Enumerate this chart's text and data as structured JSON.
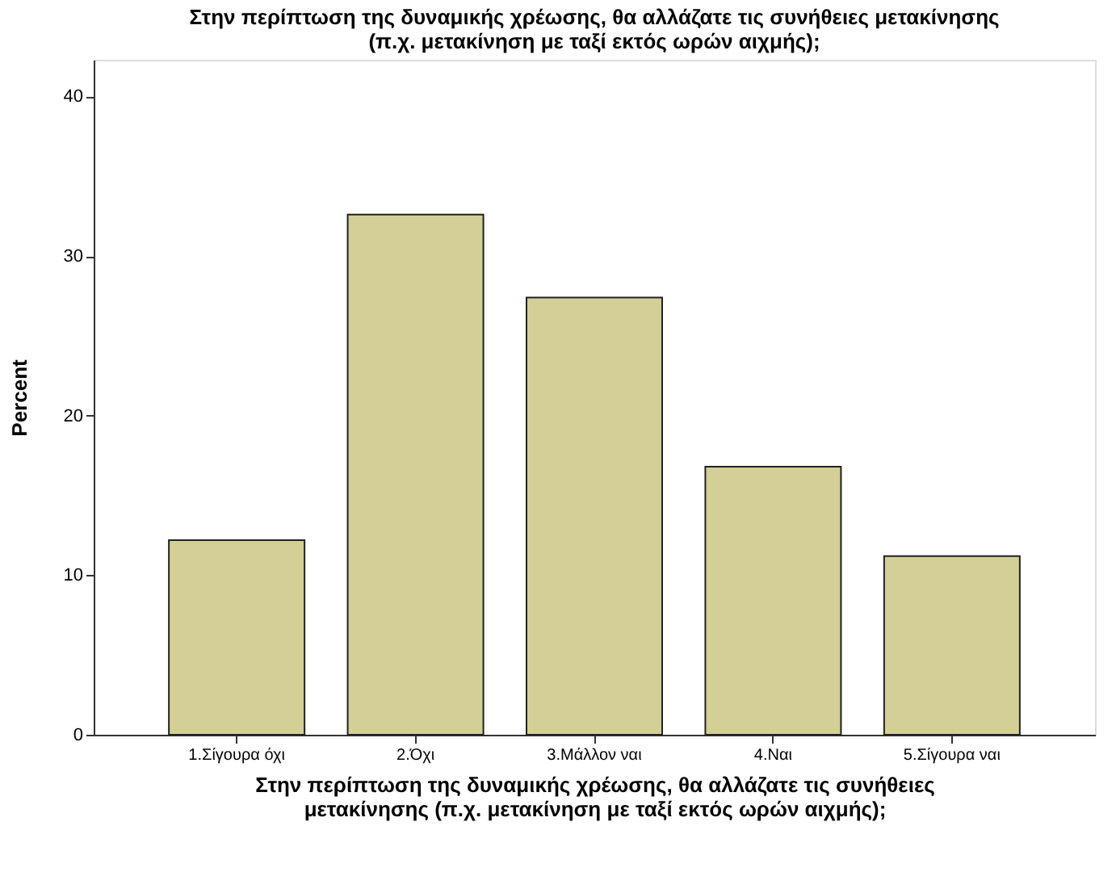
{
  "chart_data": {
    "type": "bar",
    "title": [
      "Στην περίπτωση της δυναμικής χρέωσης, θα αλλάζατε τις συνήθειες μετακίνησης",
      "(π.χ. μετακίνηση με ταξί εκτός ωρών αιχμής);"
    ],
    "xlabel": [
      "Στην περίπτωση της δυναμικής χρέωσης, θα αλλάζατε τις συνήθειες",
      "μετακίνησης (π.χ. μετακίνηση με ταξί εκτός ωρών αιχμής);"
    ],
    "ylabel": "Percent",
    "categories": [
      "1.Σίγουρα όχι",
      "2.Όχι",
      "3.Μάλλον ναι",
      "4.Ναι",
      "5.Σίγουρα ναι"
    ],
    "values": [
      12.2,
      32.6,
      27.4,
      16.8,
      11.2
    ],
    "color": "#d3cf96",
    "ylim": [
      0,
      42.3
    ],
    "yticks": [
      0,
      10,
      20,
      30,
      40
    ],
    "grid": false
  }
}
